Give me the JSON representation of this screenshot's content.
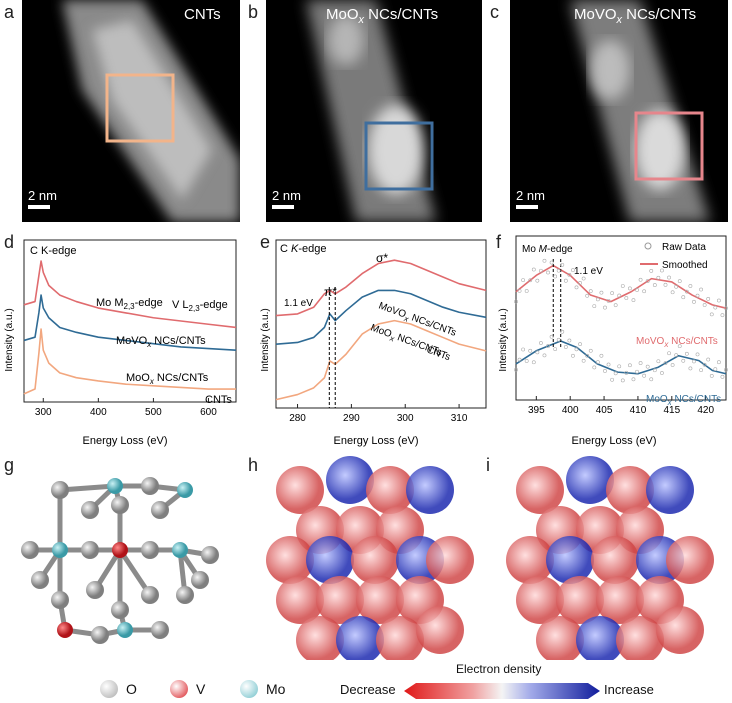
{
  "panels": {
    "a": {
      "label": "a",
      "title": "CNTs",
      "scale": "2 nm",
      "box_color": "#f2b48a"
    },
    "b": {
      "label": "b",
      "title_main": "MoO",
      "title_sub": "x",
      "title_tail": " NCs/CNTs",
      "scale": "2 nm",
      "box_color": "#3f6e9e"
    },
    "c": {
      "label": "c",
      "title_main": "MoVO",
      "title_sub": "x",
      "title_tail": " NCs/CNTs",
      "scale": "2 nm",
      "box_color": "#e6868c"
    },
    "d": {
      "label": "d"
    },
    "e": {
      "label": "e"
    },
    "f": {
      "label": "f"
    },
    "g": {
      "label": "g"
    },
    "h": {
      "label": "h"
    },
    "i": {
      "label": "i"
    }
  },
  "chart_data": [
    {
      "panel": "d",
      "type": "line",
      "xlabel": "Energy Loss (eV)",
      "ylabel": "Intensity (a.u.)",
      "xlim": [
        265,
        650
      ],
      "xticks": [
        "300",
        "400",
        "500",
        "600"
      ],
      "annotations": [
        "C K-edge",
        "Mo M2,3-edge",
        "V L2,3-edge"
      ],
      "series": [
        {
          "name": "MoVOx NCs/CNTs",
          "color": "#e06b6e",
          "x": [
            265,
            285,
            292,
            296,
            300,
            310,
            330,
            360,
            400,
            450,
            500,
            550,
            600,
            650
          ],
          "y": [
            0.6,
            0.62,
            0.78,
            0.87,
            0.8,
            0.72,
            0.66,
            0.62,
            0.58,
            0.55,
            0.52,
            0.5,
            0.48,
            0.46
          ]
        },
        {
          "name": "MoOx NCs/CNTs",
          "color": "#2f6b95",
          "x": [
            265,
            285,
            292,
            296,
            300,
            310,
            330,
            360,
            400,
            450,
            500,
            550,
            600,
            650
          ],
          "y": [
            0.38,
            0.4,
            0.55,
            0.66,
            0.58,
            0.52,
            0.46,
            0.43,
            0.4,
            0.38,
            0.36,
            0.34,
            0.33,
            0.32
          ]
        },
        {
          "name": "CNTs",
          "color": "#f2a77f",
          "x": [
            265,
            285,
            292,
            296,
            300,
            310,
            330,
            360,
            400,
            450,
            500,
            550,
            600,
            650
          ],
          "y": [
            0.05,
            0.08,
            0.3,
            0.45,
            0.32,
            0.24,
            0.18,
            0.15,
            0.13,
            0.11,
            0.1,
            0.09,
            0.08,
            0.08
          ]
        }
      ]
    },
    {
      "panel": "e",
      "type": "line",
      "title": "C K-edge",
      "xlabel": "Energy Loss (eV)",
      "ylabel": "Intensity (a.u.)",
      "xlim": [
        276,
        315
      ],
      "xticks": [
        "280",
        "290",
        "300",
        "310"
      ],
      "annotations": [
        "σ*",
        "π*",
        "1.1 eV"
      ],
      "series": [
        {
          "name": "MoVOx NCs/CNTs",
          "color": "#e06b6e",
          "x": [
            276,
            280,
            283,
            285,
            286,
            287,
            289,
            292,
            295,
            298,
            301,
            304,
            307,
            310,
            315
          ],
          "y": [
            0.55,
            0.56,
            0.6,
            0.68,
            0.7,
            0.68,
            0.72,
            0.8,
            0.86,
            0.88,
            0.86,
            0.82,
            0.78,
            0.74,
            0.7
          ]
        },
        {
          "name": "MoOx NCs/CNTs",
          "color": "#2f6b95",
          "x": [
            276,
            280,
            283,
            285,
            286,
            287,
            289,
            292,
            295,
            298,
            301,
            304,
            307,
            310,
            315
          ],
          "y": [
            0.38,
            0.39,
            0.42,
            0.48,
            0.56,
            0.52,
            0.58,
            0.66,
            0.7,
            0.7,
            0.68,
            0.64,
            0.6,
            0.57,
            0.54
          ]
        },
        {
          "name": "CNTs",
          "color": "#f2a77f",
          "x": [
            276,
            280,
            283,
            285,
            286,
            287,
            289,
            292,
            295,
            298,
            301,
            304,
            307,
            310,
            315
          ],
          "y": [
            0.05,
            0.08,
            0.12,
            0.18,
            0.28,
            0.26,
            0.32,
            0.44,
            0.5,
            0.52,
            0.5,
            0.46,
            0.42,
            0.38,
            0.34
          ]
        }
      ]
    },
    {
      "panel": "f",
      "type": "line",
      "title": "Mo M-edge",
      "xlabel": "Energy Loss (eV)",
      "ylabel": "Intensity (a.u.)",
      "xlim": [
        392,
        423
      ],
      "xticks": [
        "395",
        "400",
        "405",
        "410",
        "415",
        "420"
      ],
      "annotations": [
        "1.1 eV"
      ],
      "legend": [
        "Raw Data",
        "Smoothed"
      ],
      "series": [
        {
          "name": "MoVOx NCs/CNTs",
          "color": "#e06b6e",
          "x": [
            392,
            395,
            397.5,
            400,
            403,
            406,
            409,
            412,
            415,
            418,
            421,
            423
          ],
          "y": [
            0.66,
            0.76,
            0.82,
            0.76,
            0.64,
            0.6,
            0.66,
            0.74,
            0.72,
            0.64,
            0.58,
            0.56
          ]
        },
        {
          "name": "MoOx NCs/CNTs",
          "color": "#2f6b95",
          "x": [
            392,
            395,
            398.6,
            401,
            404,
            407,
            410,
            413,
            416,
            419,
            421,
            423
          ],
          "y": [
            0.22,
            0.3,
            0.36,
            0.32,
            0.22,
            0.17,
            0.16,
            0.2,
            0.27,
            0.24,
            0.18,
            0.16
          ]
        }
      ]
    }
  ],
  "labels": {
    "d_movox": "MoVO",
    "d_moox": "MoO",
    "d_cnts": "CNTs",
    "e_movox": "MoVO",
    "e_moox": "MoO",
    "e_cnts": "CNTs",
    "f_movox": "MoVO",
    "f_moox": "MoO",
    "x_sub": "x",
    "ncs": " NCs/CNTs",
    "ck_edge": "C K-edge",
    "mo_edge_pre": "Mo M",
    "mo_edge_sub": "2,3",
    "mo_edge_post": "-edge",
    "v_edge_pre": "V L",
    "v_edge_sub": "2,3",
    "v_edge_post": "-edge",
    "e_title_pre": "C ",
    "e_title_k": "K",
    "e_title_post": "-edge",
    "f_title_pre": "Mo ",
    "f_title_m": "M",
    "f_title_post": "-edge",
    "sigma": "σ*",
    "pi": "π*",
    "ev11": "1.1 eV",
    "raw": "Raw Data",
    "smoothed": "Smoothed",
    "xlabel": "Energy Loss (eV)",
    "ylabel": "Intensity (a.u.)"
  },
  "legend_atoms": [
    {
      "label": "O",
      "color": "#a9a9a9"
    },
    {
      "label": "V",
      "color": "#d9242a"
    },
    {
      "label": "Mo",
      "color": "#6fc0c9"
    }
  ],
  "density": {
    "title": "Electron density",
    "left": "Decrease",
    "right": "Increase"
  }
}
